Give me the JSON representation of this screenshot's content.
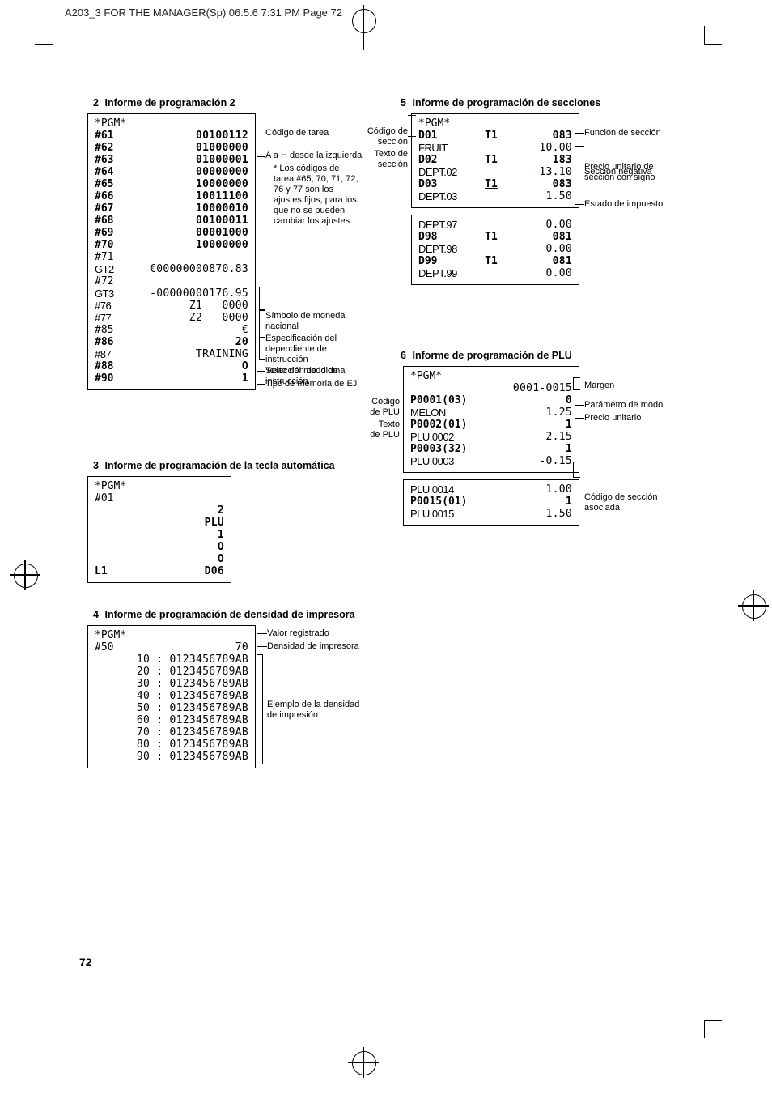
{
  "header": {
    "text": "A203_3 FOR THE MANAGER(Sp)  06.5.6 7:31 PM  Page 72"
  },
  "sections": {
    "s2": {
      "num": "2",
      "title": "Informe de programación 2",
      "receipt": {
        "lines": [
          {
            "l": "*PGM*",
            "r": ""
          },
          {
            "l": "#61",
            "r": "00100112",
            "bold": true
          },
          {
            "l": "#62",
            "r": "01000000",
            "bold": true
          },
          {
            "l": "#63",
            "r": "01000001",
            "bold": true
          },
          {
            "l": "#64",
            "r": "00000000",
            "bold": true
          },
          {
            "l": "#65",
            "r": "10000000",
            "bold": true
          },
          {
            "l": "#66",
            "r": "10011100",
            "bold": true
          },
          {
            "l": "#67",
            "r": "10000010",
            "bold": true
          },
          {
            "l": "#68",
            "r": "00100011",
            "bold": true
          },
          {
            "l": "#69",
            "r": "00001000",
            "bold": true
          },
          {
            "l": "#70",
            "r": "10000000",
            "bold": true
          },
          {
            "l": "#71",
            "r": ""
          },
          {
            "l": "GT2",
            "r": "€00000000870.83",
            "cond": true
          },
          {
            "l": "#72",
            "r": ""
          },
          {
            "l": "GT3",
            "r": "-00000000176.95",
            "cond": true
          },
          {
            "l": "#76",
            "r": "Z1   0000",
            "cond": true
          },
          {
            "l": "#77",
            "r": "Z2   0000",
            "cond": true
          },
          {
            "l": "#85",
            "r": "€"
          },
          {
            "l": "#86",
            "r": "20",
            "bold": true
          },
          {
            "l": "#87",
            "r": "TRAINING",
            "cond": true
          },
          {
            "l": "#88",
            "r": "O",
            "bold": true
          },
          {
            "l": "#90",
            "r": "1",
            "bold": true
          }
        ]
      },
      "annotations": {
        "codigo_tarea": "Código de tarea",
        "a_h": "A a H desde la izquierda",
        "nota": "* Los códigos de\ntarea #65, 70, 71, 72,\n76 y 77 son los\najustes fijos, para los\nque no se pueden\ncambiar los ajustes.",
        "simbolo": "Símbolo de moneda\nnacional",
        "espec": "Especificación del\ndependiente de\ninstrucción",
        "texto_modo": "Texto del modo de\ninstrucción",
        "idioma": "Selección de idioma",
        "ej": "Tipo de memoria de EJ"
      }
    },
    "s3": {
      "num": "3",
      "title": "Informe de programación de la tecla automática",
      "receipt": {
        "lines": [
          {
            "l": "*PGM*",
            "r": ""
          },
          {
            "l": "#01",
            "r": ""
          },
          {
            "l": "",
            "r": "2",
            "bold": true
          },
          {
            "l": "",
            "r": "PLU",
            "bold": true
          },
          {
            "l": "",
            "r": "1",
            "bold": true
          },
          {
            "l": "",
            "r": "O",
            "bold": true
          },
          {
            "l": "",
            "r": "O",
            "bold": true
          },
          {
            "l": "L1",
            "r": "D06",
            "bold": true
          }
        ]
      }
    },
    "s4": {
      "num": "4",
      "title": "Informe de programación de densidad de impresora",
      "receipt": {
        "lines": [
          {
            "l": "*PGM*",
            "r": ""
          },
          {
            "l": "#50",
            "r": "70"
          },
          {
            "l": "",
            "r": "10 : 0123456789AB"
          },
          {
            "l": "",
            "r": "20 : 0123456789AB"
          },
          {
            "l": "",
            "r": "30 : 0123456789AB"
          },
          {
            "l": "",
            "r": "40 : 0123456789AB"
          },
          {
            "l": "",
            "r": "50 : 0123456789AB"
          },
          {
            "l": "",
            "r": "60 : 0123456789AB"
          },
          {
            "l": "",
            "r": "70 : 0123456789AB"
          },
          {
            "l": "",
            "r": "80 : 0123456789AB"
          },
          {
            "l": "",
            "r": "90 : 0123456789AB"
          }
        ]
      },
      "annotations": {
        "valor": "Valor registrado",
        "densidad": "Densidad de impresora",
        "ejemplo": "Ejemplo de la densidad\nde impresión"
      }
    },
    "s5": {
      "num": "5",
      "title": "Informe de programación de secciones",
      "receipt_top": {
        "lines": [
          {
            "l": "*PGM*",
            "r": ""
          },
          {
            "c1": "D01",
            "c2": "T1",
            "c3": "083",
            "bold": true
          },
          {
            "c1": "FRUIT",
            "c2": "",
            "c3": "10.00",
            "cond": true
          },
          {
            "c1": "D02",
            "c2": "T1",
            "c3": "183",
            "bold": true
          },
          {
            "c1": "DEPT.02",
            "c2": "",
            "c3": "-13.10",
            "cond": true
          },
          {
            "c1": "D03",
            "c2": "T1",
            "c3": "083",
            "bold": true,
            "under": true
          },
          {
            "c1": "DEPT.03",
            "c2": "",
            "c3": "1.50",
            "cond": true
          }
        ]
      },
      "receipt_bot": {
        "lines": [
          {
            "c1": "DEPT.97",
            "c2": "",
            "c3": "0.00",
            "cond": true
          },
          {
            "c1": "D98",
            "c2": "T1",
            "c3": "081",
            "bold": true
          },
          {
            "c1": "DEPT.98",
            "c2": "",
            "c3": "0.00",
            "cond": true
          },
          {
            "c1": "D99",
            "c2": "T1",
            "c3": "081",
            "bold": true
          },
          {
            "c1": "DEPT.99",
            "c2": "",
            "c3": "0.00",
            "cond": true
          }
        ]
      },
      "left_labels": {
        "codigo": "Código de\nsección",
        "texto": "Texto de\nsección"
      },
      "right_labels": {
        "fn": "Función de sección",
        "precio": "Precio unitario de\nsección con signo",
        "neg": "Sección negativa",
        "tax": "Estado de impuesto"
      }
    },
    "s6": {
      "num": "6",
      "title": "Informe de programación de PLU",
      "receipt_top": {
        "lines": [
          {
            "l": "*PGM*",
            "r": ""
          },
          {
            "l": "",
            "r": "0001-0015",
            "cond": true
          },
          {
            "l": "P0001(03)",
            "r": "0",
            "bold": true
          },
          {
            "l": "MELON",
            "r": "1.25",
            "cond": true
          },
          {
            "l": "P0002(01)",
            "r": "1",
            "bold": true
          },
          {
            "l": "PLU.0002",
            "r": "2.15",
            "cond": true
          },
          {
            "l": "P0003(32)",
            "r": "1",
            "bold": true
          },
          {
            "l": "PLU.0003",
            "r": "-0.15",
            "cond": true
          }
        ]
      },
      "receipt_bot": {
        "lines": [
          {
            "l": "PLU.0014",
            "r": "1.00",
            "cond": true
          },
          {
            "l": "P0015(01)",
            "r": "1",
            "bold": true
          },
          {
            "l": "PLU.0015",
            "r": "1.50",
            "cond": true
          }
        ]
      },
      "left_labels": {
        "codigo": "Código\nde PLU",
        "texto": "Texto\nde PLU"
      },
      "right_labels": {
        "margen": "Margen",
        "param": "Parámetro de modo",
        "precio": "Precio unitario",
        "seccion": "Código de sección\nasociada"
      }
    }
  },
  "page_number": "72"
}
